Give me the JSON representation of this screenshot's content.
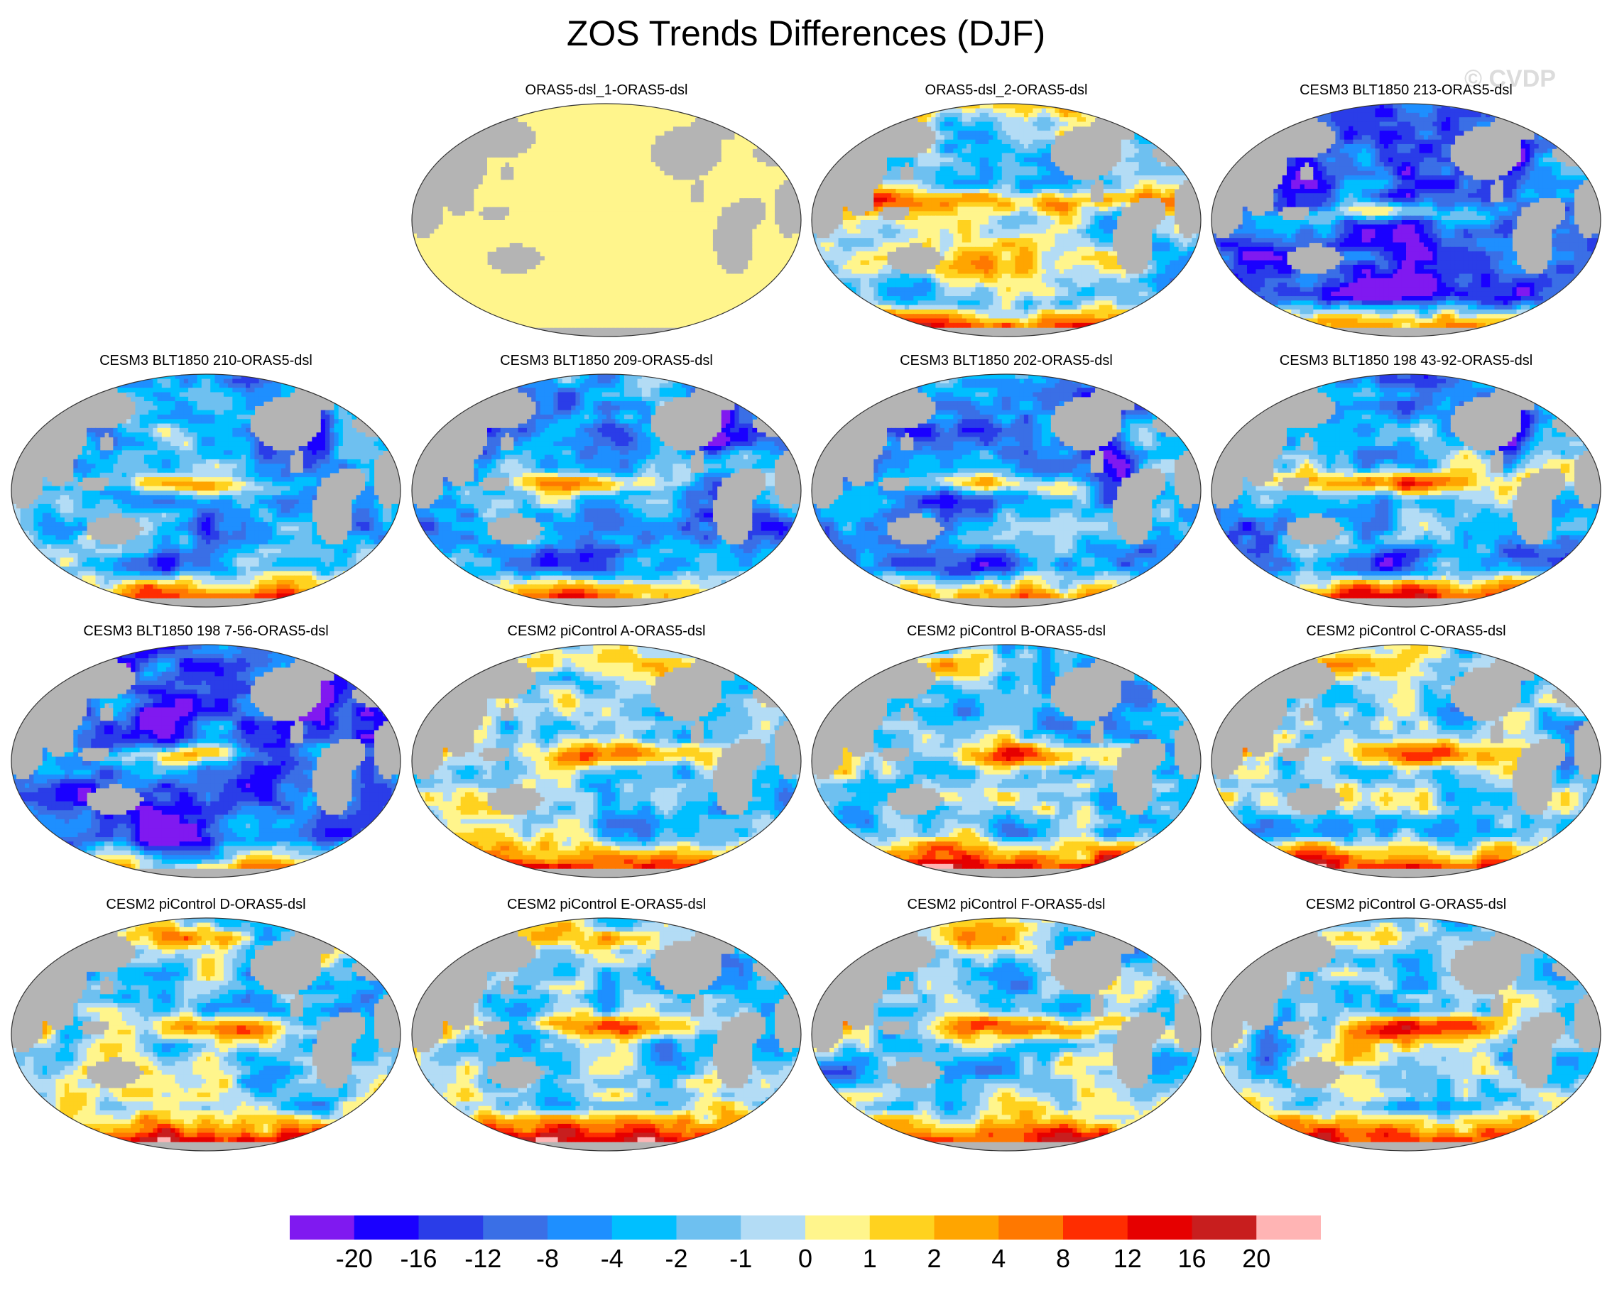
{
  "title": "ZOS Trends Differences (DJF)",
  "watermark": "© CVDP",
  "land_color": "#b4b4b4",
  "panels": [
    {
      "label": "ORAS5-dsl_1-ORAS5-dsl",
      "pattern": "uniform"
    },
    {
      "label": "ORAS5-dsl_2-ORAS5-dsl",
      "pattern": "orasB"
    },
    {
      "label": "CESM3 BLT1850 213-ORAS5-dsl",
      "pattern": "cesm3neg"
    },
    {
      "label": "CESM3 BLT1850 210-ORAS5-dsl",
      "pattern": "cesm3"
    },
    {
      "label": "CESM3 BLT1850 209-ORAS5-dsl",
      "pattern": "cesm3"
    },
    {
      "label": "CESM3 BLT1850 202-ORAS5-dsl",
      "pattern": "cesm3"
    },
    {
      "label": "CESM3 BLT1850 198 43-92-ORAS5-dsl",
      "pattern": "cesm3pos"
    },
    {
      "label": "CESM3 BLT1850 198 7-56-ORAS5-dsl",
      "pattern": "cesm3neg"
    },
    {
      "label": "CESM2 piControl A-ORAS5-dsl",
      "pattern": "cesm2"
    },
    {
      "label": "CESM2 piControl B-ORAS5-dsl",
      "pattern": "cesm2"
    },
    {
      "label": "CESM2 piControl C-ORAS5-dsl",
      "pattern": "cesm2"
    },
    {
      "label": "CESM2 piControl D-ORAS5-dsl",
      "pattern": "cesm2"
    },
    {
      "label": "CESM2 piControl E-ORAS5-dsl",
      "pattern": "cesm2"
    },
    {
      "label": "CESM2 piControl F-ORAS5-dsl",
      "pattern": "cesm2"
    },
    {
      "label": "CESM2 piControl G-ORAS5-dsl",
      "pattern": "cesm2"
    }
  ],
  "colorbar": {
    "colors": [
      "#8019f0",
      "#1a00ff",
      "#2a3de8",
      "#3a6fe6",
      "#1e8fff",
      "#00bfff",
      "#6ec0f0",
      "#b3dcf5",
      "#fff58c",
      "#ffd21f",
      "#ffa500",
      "#ff7800",
      "#ff2d00",
      "#e60000",
      "#c81e1e",
      "#ffb4b4"
    ],
    "labels": [
      "-20",
      "-16",
      "-12",
      "-8",
      "-4",
      "-2",
      "-1",
      "0",
      "1",
      "2",
      "4",
      "8",
      "12",
      "16",
      "20"
    ]
  }
}
